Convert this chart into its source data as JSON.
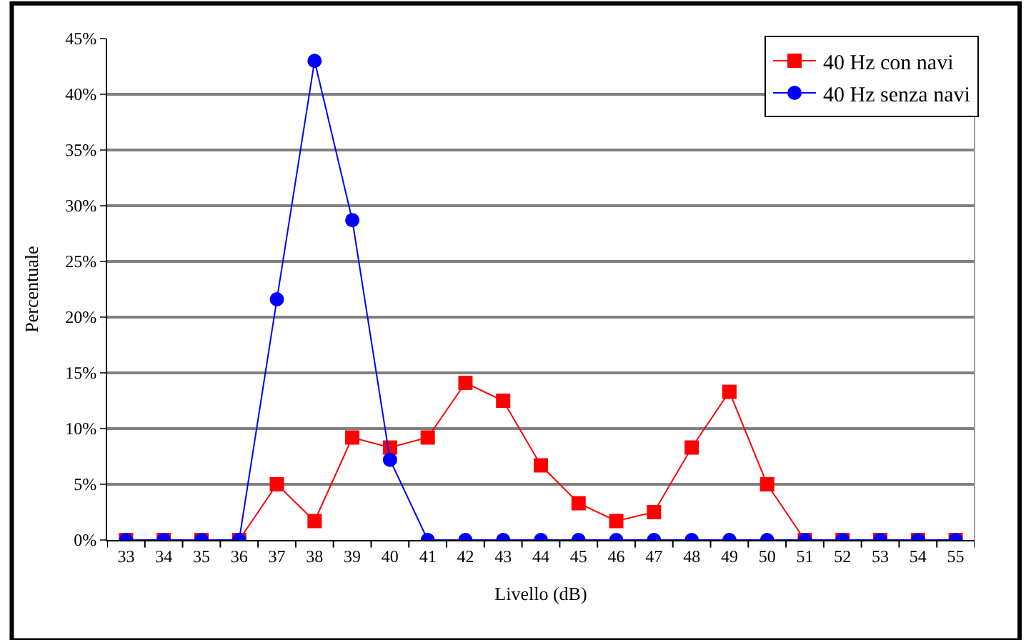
{
  "chart_data": {
    "type": "line",
    "xlabel": "Livello (dB)",
    "ylabel": "Percentuale",
    "categories": [
      "33",
      "34",
      "35",
      "36",
      "37",
      "38",
      "39",
      "40",
      "41",
      "42",
      "43",
      "44",
      "45",
      "46",
      "47",
      "48",
      "49",
      "50",
      "51",
      "52",
      "53",
      "54",
      "55"
    ],
    "series": [
      {
        "name": "40 Hz con navi",
        "color": "#ff0000",
        "marker": "square",
        "values": [
          0,
          0,
          0,
          0,
          5.0,
          1.7,
          9.2,
          8.3,
          9.2,
          14.1,
          12.5,
          6.7,
          3.3,
          1.7,
          2.5,
          8.3,
          13.3,
          5.0,
          0,
          0,
          0,
          0,
          0
        ]
      },
      {
        "name": "40 Hz senza navi",
        "color": "#0000ff",
        "marker": "circle",
        "values": [
          0,
          0,
          0,
          0,
          21.6,
          43.0,
          28.7,
          7.2,
          0,
          0,
          0,
          0,
          0,
          0,
          0,
          0,
          0,
          0,
          0,
          0,
          0,
          0,
          0
        ]
      }
    ],
    "ylim": [
      0,
      45
    ],
    "yticks": [
      {
        "value": 0,
        "label": "0%"
      },
      {
        "value": 5,
        "label": "5%"
      },
      {
        "value": 10,
        "label": "10%"
      },
      {
        "value": 15,
        "label": "15%"
      },
      {
        "value": 20,
        "label": "20%"
      },
      {
        "value": 25,
        "label": "25%"
      },
      {
        "value": 30,
        "label": "30%"
      },
      {
        "value": 35,
        "label": "35%"
      },
      {
        "value": 40,
        "label": "40%"
      },
      {
        "value": 45,
        "label": "45%"
      }
    ],
    "grid": "y",
    "legend": "top right",
    "line_style": "solid"
  }
}
